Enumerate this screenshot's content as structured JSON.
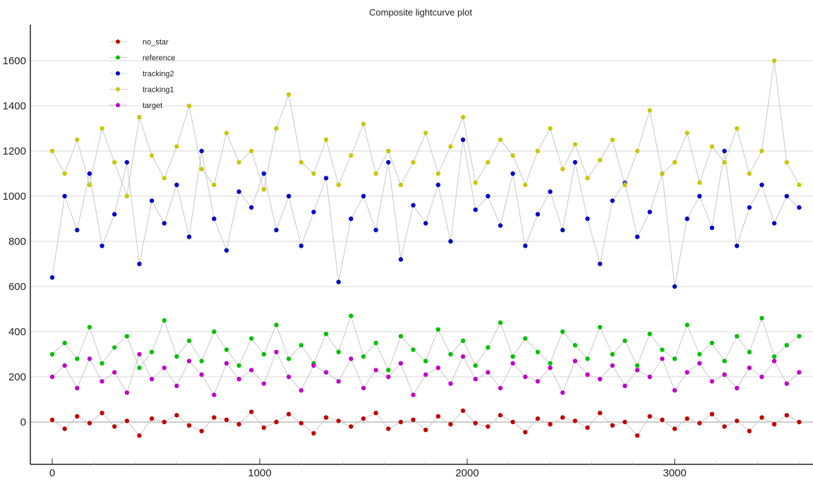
{
  "chart_data": {
    "type": "scatter",
    "title": "Composite lightcurve plot",
    "xlabel": "",
    "ylabel": "",
    "xlim": [
      -100,
      3650
    ],
    "ylim": [
      -190,
      1750
    ],
    "x_ticks": [
      0,
      1000,
      2000,
      3000
    ],
    "y_ticks": [
      0,
      200,
      400,
      600,
      800,
      1000,
      1200,
      1400,
      1600
    ],
    "grid": "horizontal",
    "legend_position": "top-left",
    "x_start": 0,
    "x_step": 60,
    "series": [
      {
        "name": "reference",
        "color": "#00c000",
        "values": [
          300,
          350,
          280,
          420,
          260,
          330,
          380,
          240,
          310,
          450,
          290,
          360,
          270,
          400,
          320,
          250,
          370,
          300,
          430,
          280,
          340,
          260,
          390,
          310,
          470,
          290,
          350,
          230,
          380,
          320,
          270,
          410,
          300,
          360,
          250,
          330,
          440,
          290,
          370,
          310,
          260,
          400,
          340,
          280,
          420,
          300,
          360,
          250,
          390,
          320,
          280,
          430,
          300,
          350,
          270,
          380,
          310,
          460,
          290,
          340,
          380
        ]
      },
      {
        "name": "target",
        "color": "#c000c8",
        "values": [
          200,
          250,
          150,
          280,
          180,
          220,
          130,
          300,
          190,
          240,
          160,
          270,
          210,
          120,
          260,
          190,
          230,
          170,
          310,
          200,
          140,
          250,
          220,
          180,
          280,
          150,
          230,
          200,
          260,
          120,
          210,
          240,
          170,
          290,
          190,
          220,
          150,
          260,
          200,
          180,
          240,
          130,
          270,
          210,
          190,
          250,
          160,
          230,
          200,
          280,
          140,
          220,
          260,
          180,
          210,
          150,
          240,
          200,
          270,
          170,
          220
        ]
      },
      {
        "name": "tracking2",
        "color": "#0000c8",
        "values": [
          640,
          1000,
          850,
          1100,
          780,
          920,
          1150,
          700,
          980,
          880,
          1050,
          820,
          1200,
          900,
          760,
          1020,
          950,
          1100,
          850,
          1000,
          780,
          930,
          1080,
          620,
          900,
          1000,
          850,
          1150,
          720,
          960,
          880,
          1050,
          800,
          1250,
          940,
          1000,
          870,
          1100,
          780,
          920,
          1020,
          850,
          1150,
          900,
          700,
          980,
          1060,
          820,
          930,
          1100,
          600,
          900,
          1000,
          860,
          1200,
          780,
          950,
          1050,
          880,
          1000,
          950
        ]
      },
      {
        "name": "tracking1",
        "color": "#c8c800",
        "values": [
          1200,
          1100,
          1250,
          1050,
          1300,
          1150,
          1000,
          1350,
          1180,
          1080,
          1220,
          1400,
          1120,
          1050,
          1280,
          1150,
          1200,
          1030,
          1300,
          1450,
          1150,
          1100,
          1250,
          1050,
          1180,
          1320,
          1100,
          1200,
          1050,
          1150,
          1280,
          1100,
          1220,
          1350,
          1060,
          1150,
          1250,
          1180,
          1050,
          1200,
          1300,
          1120,
          1230,
          1080,
          1160,
          1250,
          1050,
          1200,
          1380,
          1100,
          1150,
          1280,
          1060,
          1220,
          1150,
          1300,
          1100,
          1200,
          1600,
          1150,
          1050
        ]
      },
      {
        "name": "no_star",
        "color": "#c00000",
        "values": [
          10,
          -30,
          25,
          -5,
          40,
          -20,
          5,
          -60,
          15,
          0,
          30,
          -15,
          -40,
          20,
          10,
          -10,
          45,
          -25,
          0,
          35,
          -5,
          -50,
          20,
          5,
          -20,
          15,
          40,
          -30,
          0,
          10,
          -35,
          25,
          -10,
          50,
          -5,
          -20,
          30,
          0,
          -45,
          15,
          -10,
          20,
          5,
          -25,
          40,
          -15,
          0,
          -60,
          25,
          10,
          -30,
          15,
          -5,
          35,
          -20,
          5,
          -40,
          20,
          -10,
          30,
          0
        ]
      }
    ],
    "legend": [
      "no_star",
      "reference",
      "tracking2",
      "tracking1",
      "target"
    ]
  }
}
